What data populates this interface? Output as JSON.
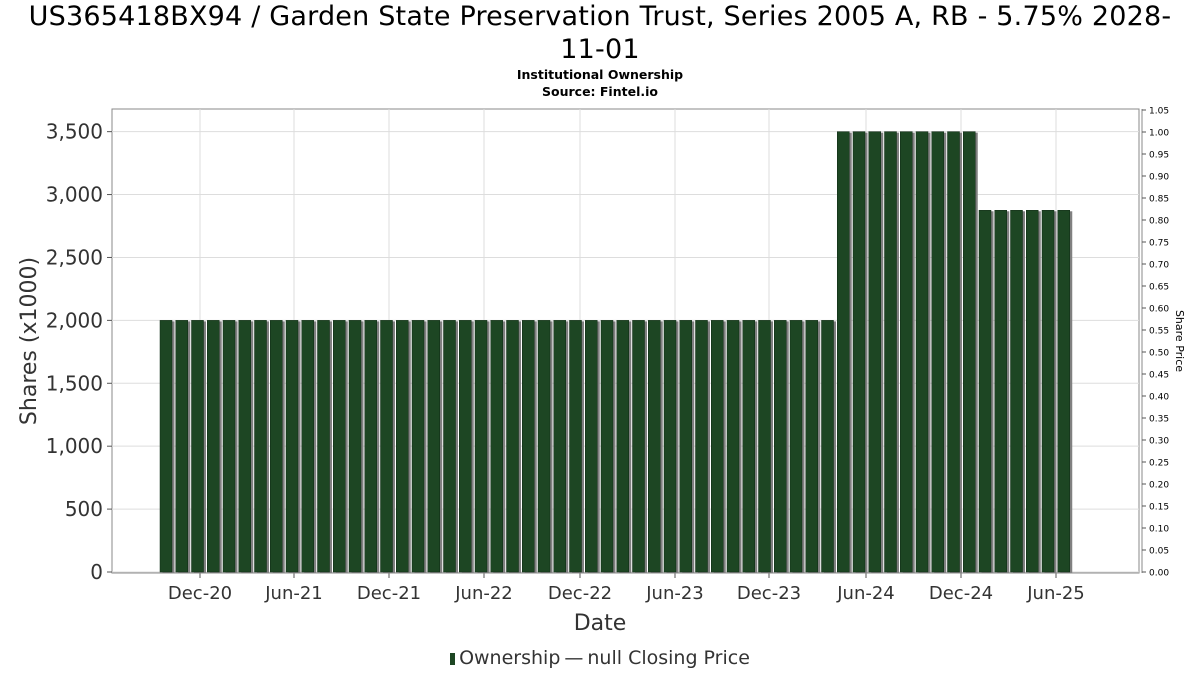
{
  "header": {
    "title_line1": "US365418BX94 / Garden State Preservation Trust, Series 2005 A, RB - 5.75% 2028-",
    "title_line2": "11-01",
    "subtitle": "Institutional Ownership",
    "source": "Source: Fintel.io"
  },
  "legend": {
    "ownership_label": "Ownership",
    "dash": "—",
    "price_label": "null Closing Price"
  },
  "chart_data": {
    "type": "bar",
    "title": "US365418BX94 / Garden State Preservation Trust, Series 2005 A, RB - 5.75% 2028-11-01",
    "subtitle": "Institutional Ownership",
    "xlabel": "Date",
    "ylabel": "Shares (x1000)",
    "y2label": "Share Price",
    "ylim": [
      0,
      3680
    ],
    "y2lim": [
      0,
      1.05
    ],
    "yticks": [
      0,
      500,
      1000,
      1500,
      2000,
      2500,
      3000,
      3500
    ],
    "ytick_labels": [
      "0",
      "500",
      "1,000",
      "1,500",
      "2,000",
      "2,500",
      "3,000",
      "3,500"
    ],
    "y2ticks": [
      "0.00",
      "0.05",
      "0.10",
      "0.15",
      "0.20",
      "0.25",
      "0.30",
      "0.35",
      "0.40",
      "0.45",
      "0.50",
      "0.55",
      "0.60",
      "0.65",
      "0.70",
      "0.75",
      "0.80",
      "0.85",
      "0.90",
      "0.95",
      "1.00",
      "1.05"
    ],
    "xtick_labels": [
      "Dec-20",
      "Jun-21",
      "Dec-21",
      "Jun-22",
      "Dec-22",
      "Jun-23",
      "Dec-23",
      "Jun-24",
      "Dec-24",
      "Jun-25"
    ],
    "grid": true,
    "legend_position": "bottom",
    "colors": {
      "bar": "#1d4623",
      "bar_shadow": "#808080"
    },
    "series": [
      {
        "name": "Ownership",
        "values": [
          2000,
          2000,
          2000,
          2000,
          2000,
          2000,
          2000,
          2000,
          2000,
          2000,
          2000,
          2000,
          2000,
          2000,
          2000,
          2000,
          2000,
          2000,
          2000,
          2000,
          2000,
          2000,
          2000,
          2000,
          2000,
          2000,
          2000,
          2000,
          2000,
          2000,
          2000,
          2000,
          2000,
          2000,
          2000,
          2000,
          2000,
          2000,
          2000,
          2000,
          2000,
          2000,
          2000,
          3500,
          3500,
          3500,
          3500,
          3500,
          3500,
          3500,
          3500,
          3500,
          2875,
          2875,
          2875,
          2875,
          2875,
          2875
        ]
      },
      {
        "name": "null Closing Price",
        "values": []
      }
    ]
  }
}
